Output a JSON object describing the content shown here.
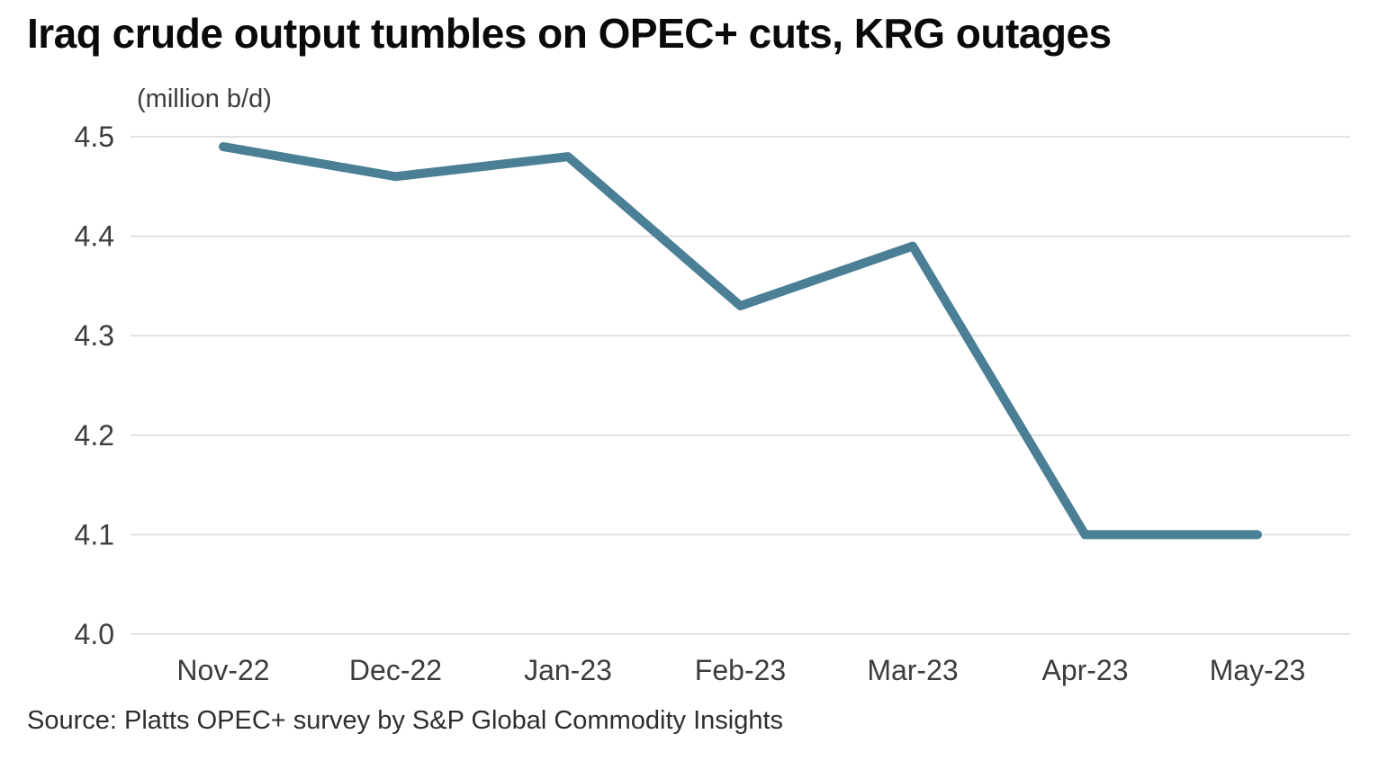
{
  "title": "Iraq crude output tumbles on OPEC+ cuts, KRG outages",
  "subtitle": "(million b/d)",
  "source": "Source: Platts OPEC+ survey by S&P Global Commodity Insights",
  "chart_data": {
    "type": "line",
    "categories": [
      "Nov-22",
      "Dec-22",
      "Jan-23",
      "Feb-23",
      "Mar-23",
      "Apr-23",
      "May-23"
    ],
    "values": [
      4.49,
      4.46,
      4.48,
      4.33,
      4.39,
      4.1,
      4.1
    ],
    "title": "Iraq crude output tumbles on OPEC+ cuts, KRG outages",
    "subtitle": "(million b/d)",
    "xlabel": "",
    "ylabel": "million b/d",
    "ylim": [
      4.0,
      4.5
    ],
    "yticks": [
      4.0,
      4.1,
      4.2,
      4.3,
      4.4,
      4.5
    ],
    "grid": "horizontal-only",
    "legend": "none",
    "line_color": "#4A7F96",
    "grid_color": "#d9d9d9",
    "tick_label_color": "#3c3c3c"
  }
}
